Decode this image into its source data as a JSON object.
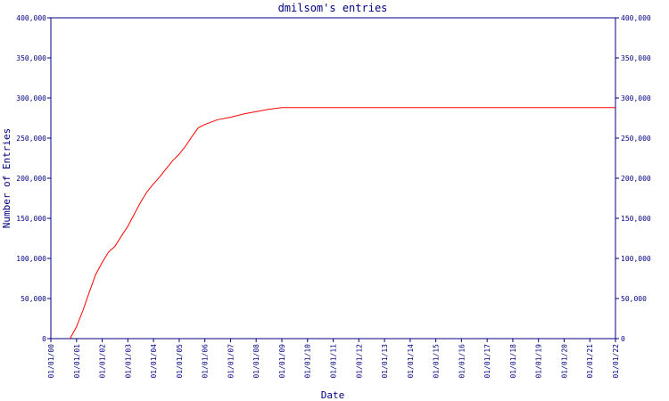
{
  "chart_data": {
    "type": "line",
    "title": "dmilsom's entries",
    "xlabel": "Date",
    "ylabel": "Number of Entries",
    "ylim": [
      0,
      400000
    ],
    "xlim": [
      "2000-01-01",
      "2022-01-01"
    ],
    "grid": false,
    "legend": "none",
    "y_ticks": [
      0,
      50000,
      100000,
      150000,
      200000,
      250000,
      300000,
      350000,
      400000
    ],
    "y_tick_labels": [
      "0",
      "50,000",
      "100,000",
      "150,000",
      "200,000",
      "250,000",
      "300,000",
      "350,000",
      "400,000"
    ],
    "x_ticks": [
      "2000-01-01",
      "2001-01-01",
      "2002-01-01",
      "2003-01-01",
      "2004-01-01",
      "2005-01-01",
      "2006-01-01",
      "2007-01-01",
      "2008-01-01",
      "2009-01-01",
      "2010-01-01",
      "2011-01-01",
      "2012-01-01",
      "2013-01-01",
      "2014-01-01",
      "2015-01-01",
      "2016-01-01",
      "2017-01-01",
      "2018-01-01",
      "2019-01-01",
      "2020-01-01",
      "2021-01-01",
      "2022-01-01"
    ],
    "x_tick_labels": [
      "01/01/00",
      "01/01/01",
      "01/01/02",
      "01/01/03",
      "01/01/04",
      "01/01/05",
      "01/01/06",
      "01/01/07",
      "01/01/08",
      "01/01/09",
      "01/01/10",
      "01/01/11",
      "01/01/12",
      "01/01/13",
      "01/01/14",
      "01/01/15",
      "01/01/16",
      "01/01/17",
      "01/01/18",
      "01/01/19",
      "01/01/20",
      "01/01/21",
      "01/01/22"
    ],
    "series": [
      {
        "color": "#ff0000",
        "x": [
          "2000-10-01",
          "2001-01-01",
          "2001-04-01",
          "2001-07-01",
          "2001-10-01",
          "2002-01-01",
          "2002-04-01",
          "2002-07-01",
          "2002-10-01",
          "2003-01-01",
          "2003-04-01",
          "2003-07-01",
          "2003-10-01",
          "2004-01-01",
          "2004-04-01",
          "2004-07-01",
          "2004-10-01",
          "2005-01-01",
          "2005-04-01",
          "2005-07-01",
          "2005-10-01",
          "2006-01-01",
          "2006-07-01",
          "2007-01-01",
          "2007-07-01",
          "2008-01-01",
          "2008-07-01",
          "2009-01-01",
          "2010-01-01",
          "2012-01-01",
          "2015-01-01",
          "2018-01-01",
          "2022-01-01"
        ],
        "y": [
          0,
          15000,
          35000,
          58000,
          80000,
          95000,
          108000,
          115000,
          128000,
          140000,
          155000,
          170000,
          183000,
          193000,
          202000,
          212000,
          222000,
          230000,
          240000,
          252000,
          263000,
          267000,
          273000,
          276000,
          280000,
          283000,
          286000,
          288000,
          288000,
          288000,
          288000,
          288000,
          288000
        ]
      }
    ],
    "axis_color": "#000080"
  }
}
